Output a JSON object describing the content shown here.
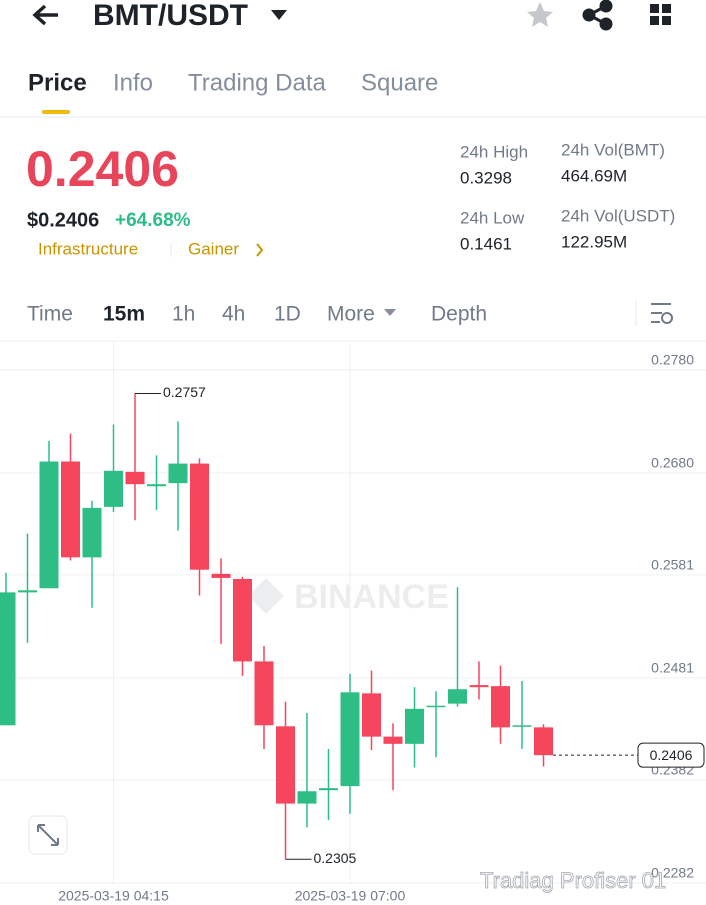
{
  "header": {
    "pair": "BMT/USDT"
  },
  "tabs": [
    "Price",
    "Info",
    "Trading Data",
    "Square"
  ],
  "price": {
    "last": "0.2406",
    "usd": "$0.2406",
    "change": "+64.68%",
    "tags": [
      "Infrastructure",
      "Gainer"
    ]
  },
  "stats": [
    {
      "label": "24h High",
      "value": "0.3298"
    },
    {
      "label": "24h Vol(BMT)",
      "value": "464.69M"
    },
    {
      "label": "24h Low",
      "value": "0.1461"
    },
    {
      "label": "24h Vol(USDT)",
      "value": "122.95M"
    }
  ],
  "intervals": [
    "Time",
    "15m",
    "1h",
    "4h",
    "1D",
    "More",
    "Depth"
  ],
  "watermark": "BINANCE",
  "overlay_text": "Tradiag Profiser 01",
  "chart_data": {
    "type": "candlestick",
    "categories": [
      null,
      null,
      null,
      null,
      null,
      "2025-03-19 04:15",
      null,
      null,
      null,
      null,
      null,
      null,
      null,
      null,
      null,
      null,
      "2025-03-19 07:00",
      null,
      null,
      null,
      null,
      null,
      null,
      null,
      null,
      null
    ],
    "open": [
      0.2435,
      0.2564,
      0.2568,
      0.2691,
      0.2598,
      0.2647,
      0.2681,
      0.2667,
      0.267,
      0.2689,
      0.2582,
      0.2577,
      0.2497,
      0.2434,
      0.2359,
      0.2372,
      0.2376,
      0.2466,
      0.2424,
      0.2417,
      0.2453,
      0.2456,
      0.2474,
      0.2473,
      0.2434,
      0.2433
    ],
    "high": [
      0.2583,
      0.2621,
      0.2711,
      0.2718,
      0.2653,
      0.2727,
      0.2757,
      0.2697,
      0.273,
      0.2694,
      0.2597,
      0.2579,
      0.2512,
      0.2458,
      0.2447,
      0.2412,
      0.2485,
      0.2488,
      0.2437,
      0.2472,
      0.2468,
      0.2569,
      0.2497,
      0.2493,
      0.2478,
      0.2436
    ],
    "low": [
      0.2435,
      0.2515,
      0.2568,
      0.2595,
      0.2549,
      0.2642,
      0.2634,
      0.2644,
      0.2624,
      0.2561,
      0.2514,
      0.2483,
      0.2412,
      0.2305,
      0.2336,
      0.2343,
      0.2349,
      0.2411,
      0.2372,
      0.2394,
      0.2404,
      0.2453,
      0.246,
      0.2417,
      0.2412,
      0.2395
    ],
    "close": [
      0.2564,
      0.2566,
      0.2691,
      0.2598,
      0.2646,
      0.2682,
      0.2669,
      0.2669,
      0.2689,
      0.2586,
      0.2578,
      0.2497,
      0.2435,
      0.2359,
      0.2371,
      0.2374,
      0.2467,
      0.2424,
      0.2417,
      0.2451,
      0.2454,
      0.247,
      0.2472,
      0.2433,
      0.2435,
      0.2406
    ],
    "up_color": "#2ebd85",
    "down_color": "#f6465d",
    "ylim": [
      0.228,
      0.2807
    ],
    "yticks": [
      {
        "value": 0.278,
        "label": "0.2780"
      },
      {
        "value": 0.268,
        "label": "0.2680"
      },
      0.2581,
      0.2481,
      0.2382,
      0.2282
    ],
    "grid": true,
    "high_label": 0.2757,
    "low_label": 0.2305,
    "last_price": 0.2406
  }
}
